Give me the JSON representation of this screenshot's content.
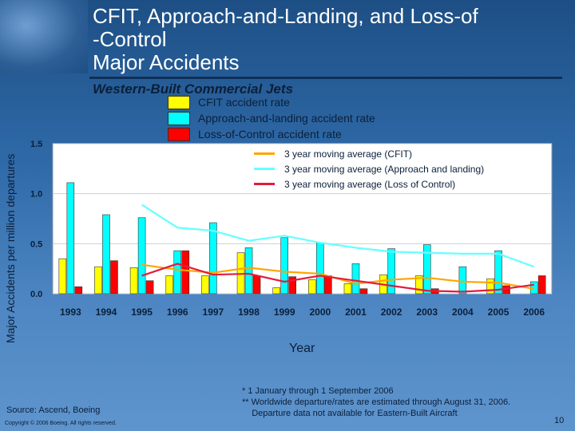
{
  "header": {
    "title_lines": [
      "CFIT, Approach-and-Landing, and Loss-of",
      "-Control",
      "Major Accidents"
    ],
    "subtitle": "Western-Built Commercial Jets"
  },
  "chart_data": {
    "type": "bar",
    "title": "CFIT, Approach-and-Landing, and Loss-of-Control Major Accidents",
    "subtitle": "Western-Built Commercial Jets",
    "xlabel": "Year",
    "ylabel": "Major Accidents per million departures",
    "ylim": [
      0,
      1.5
    ],
    "yticks": [
      "0.0",
      "0.5",
      "1.0",
      "1.5"
    ],
    "categories": [
      "1993",
      "1994",
      "1995",
      "1996",
      "1997",
      "1998",
      "1999",
      "2000",
      "2001",
      "2002",
      "2003",
      "2004",
      "2005",
      "2006"
    ],
    "series": [
      {
        "name": "CFIT accident rate",
        "color": "#ffff00",
        "values": [
          0.35,
          0.27,
          0.26,
          0.18,
          0.18,
          0.41,
          0.06,
          0.14,
          0.1,
          0.19,
          0.18,
          0.0,
          0.15,
          0.0
        ]
      },
      {
        "name": "Approach-and-landing accident rate",
        "color": "#00ffff",
        "values": [
          1.11,
          0.79,
          0.76,
          0.43,
          0.71,
          0.46,
          0.56,
          0.51,
          0.3,
          0.45,
          0.49,
          0.27,
          0.43,
          0.12
        ]
      },
      {
        "name": "Loss-of-Control accident rate",
        "color": "#ff0000",
        "values": [
          0.07,
          0.33,
          0.13,
          0.43,
          0.0,
          0.18,
          0.17,
          0.18,
          0.05,
          0.0,
          0.05,
          0.0,
          0.08,
          0.18
        ]
      }
    ],
    "moving_averages": [
      {
        "name": "3 year moving average (CFIT)",
        "color": "#ffa500",
        "start_index": 2,
        "values": [
          0.29,
          0.24,
          0.21,
          0.26,
          0.22,
          0.2,
          0.1,
          0.14,
          0.16,
          0.12,
          0.11,
          0.05
        ]
      },
      {
        "name": "3 year moving average (Approach and landing)",
        "color": "#66ffff",
        "start_index": 2,
        "values": [
          0.89,
          0.66,
          0.63,
          0.53,
          0.58,
          0.51,
          0.46,
          0.42,
          0.41,
          0.4,
          0.4,
          0.27
        ]
      },
      {
        "name": "3 year moving average (Loss of Control)",
        "color": "#e21c3c",
        "start_index": 2,
        "values": [
          0.18,
          0.3,
          0.19,
          0.2,
          0.12,
          0.18,
          0.13,
          0.08,
          0.03,
          0.02,
          0.04,
          0.09
        ]
      }
    ]
  },
  "legend_bars": [
    {
      "label": "CFIT accident rate",
      "color": "#ffff00"
    },
    {
      "label": "Approach-and-landing accident rate",
      "color": "#00ffff"
    },
    {
      "label": "Loss-of-Control accident rate",
      "color": "#ff0000"
    }
  ],
  "legend_lines": [
    {
      "label": "3 year moving average (CFIT)",
      "color": "#ffa500"
    },
    {
      "label": "3 year moving average (Approach and landing)",
      "color": "#66ffff"
    },
    {
      "label": "3 year moving average (Loss of Control)",
      "color": "#e21c3c"
    }
  ],
  "footer": {
    "source": "Source: Ascend, Boeing",
    "copyright": "Copyright © 2006 Boeing. All rights reserved.",
    "footnotes": [
      "* 1 January  through 1 September 2006",
      "** Worldwide departure/rates are estimated through August 31, 2006.",
      "    Departure data not available for Eastern-Built Aircraft"
    ],
    "page_number": "10"
  }
}
